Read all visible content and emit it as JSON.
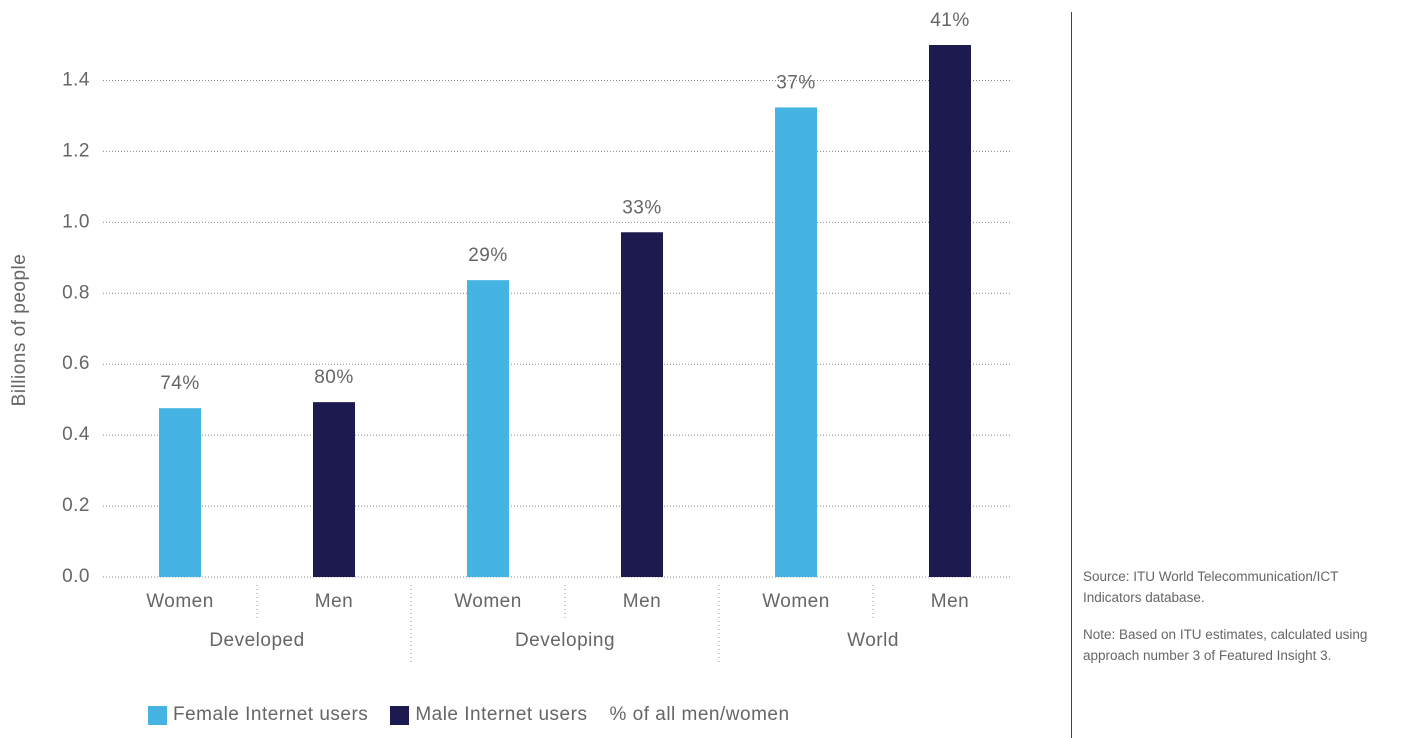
{
  "chart_data": {
    "type": "bar",
    "y_label": "Billions of people",
    "groups": [
      "Developed",
      "Developing",
      "World"
    ],
    "categories": [
      "Women",
      "Men",
      "Women",
      "Men",
      "Women",
      "Men"
    ],
    "series": [
      {
        "name": "Female Internet users",
        "color": "#45b4e3",
        "values": [
          0.476,
          null,
          0.837,
          null,
          1.324,
          null
        ]
      },
      {
        "name": "Male Internet users",
        "color": "#1c1a4f",
        "values": [
          null,
          0.493,
          null,
          0.972,
          null,
          1.5
        ]
      },
      {
        "name": "% of all men/women",
        "values": [
          74,
          80,
          29,
          33,
          37,
          41
        ],
        "value_labels": [
          "74%",
          "80%",
          "29%",
          "33%",
          "37%",
          "41%"
        ]
      }
    ],
    "ylim": [
      0,
      1.5
    ],
    "yticks": [
      {
        "value": 0,
        "label": "0.0"
      },
      0.2,
      0.4,
      0.6,
      0.8,
      {
        "value": 1,
        "label": "1.0"
      },
      1.2,
      1.4
    ],
    "grid": true
  },
  "sidebar": {
    "source": "Source: ITU World Telecommunication/ICT Indicators database.",
    "note": "Note: Based on ITU estimates, calculated using approach number 3 of Featured Insight 3."
  }
}
